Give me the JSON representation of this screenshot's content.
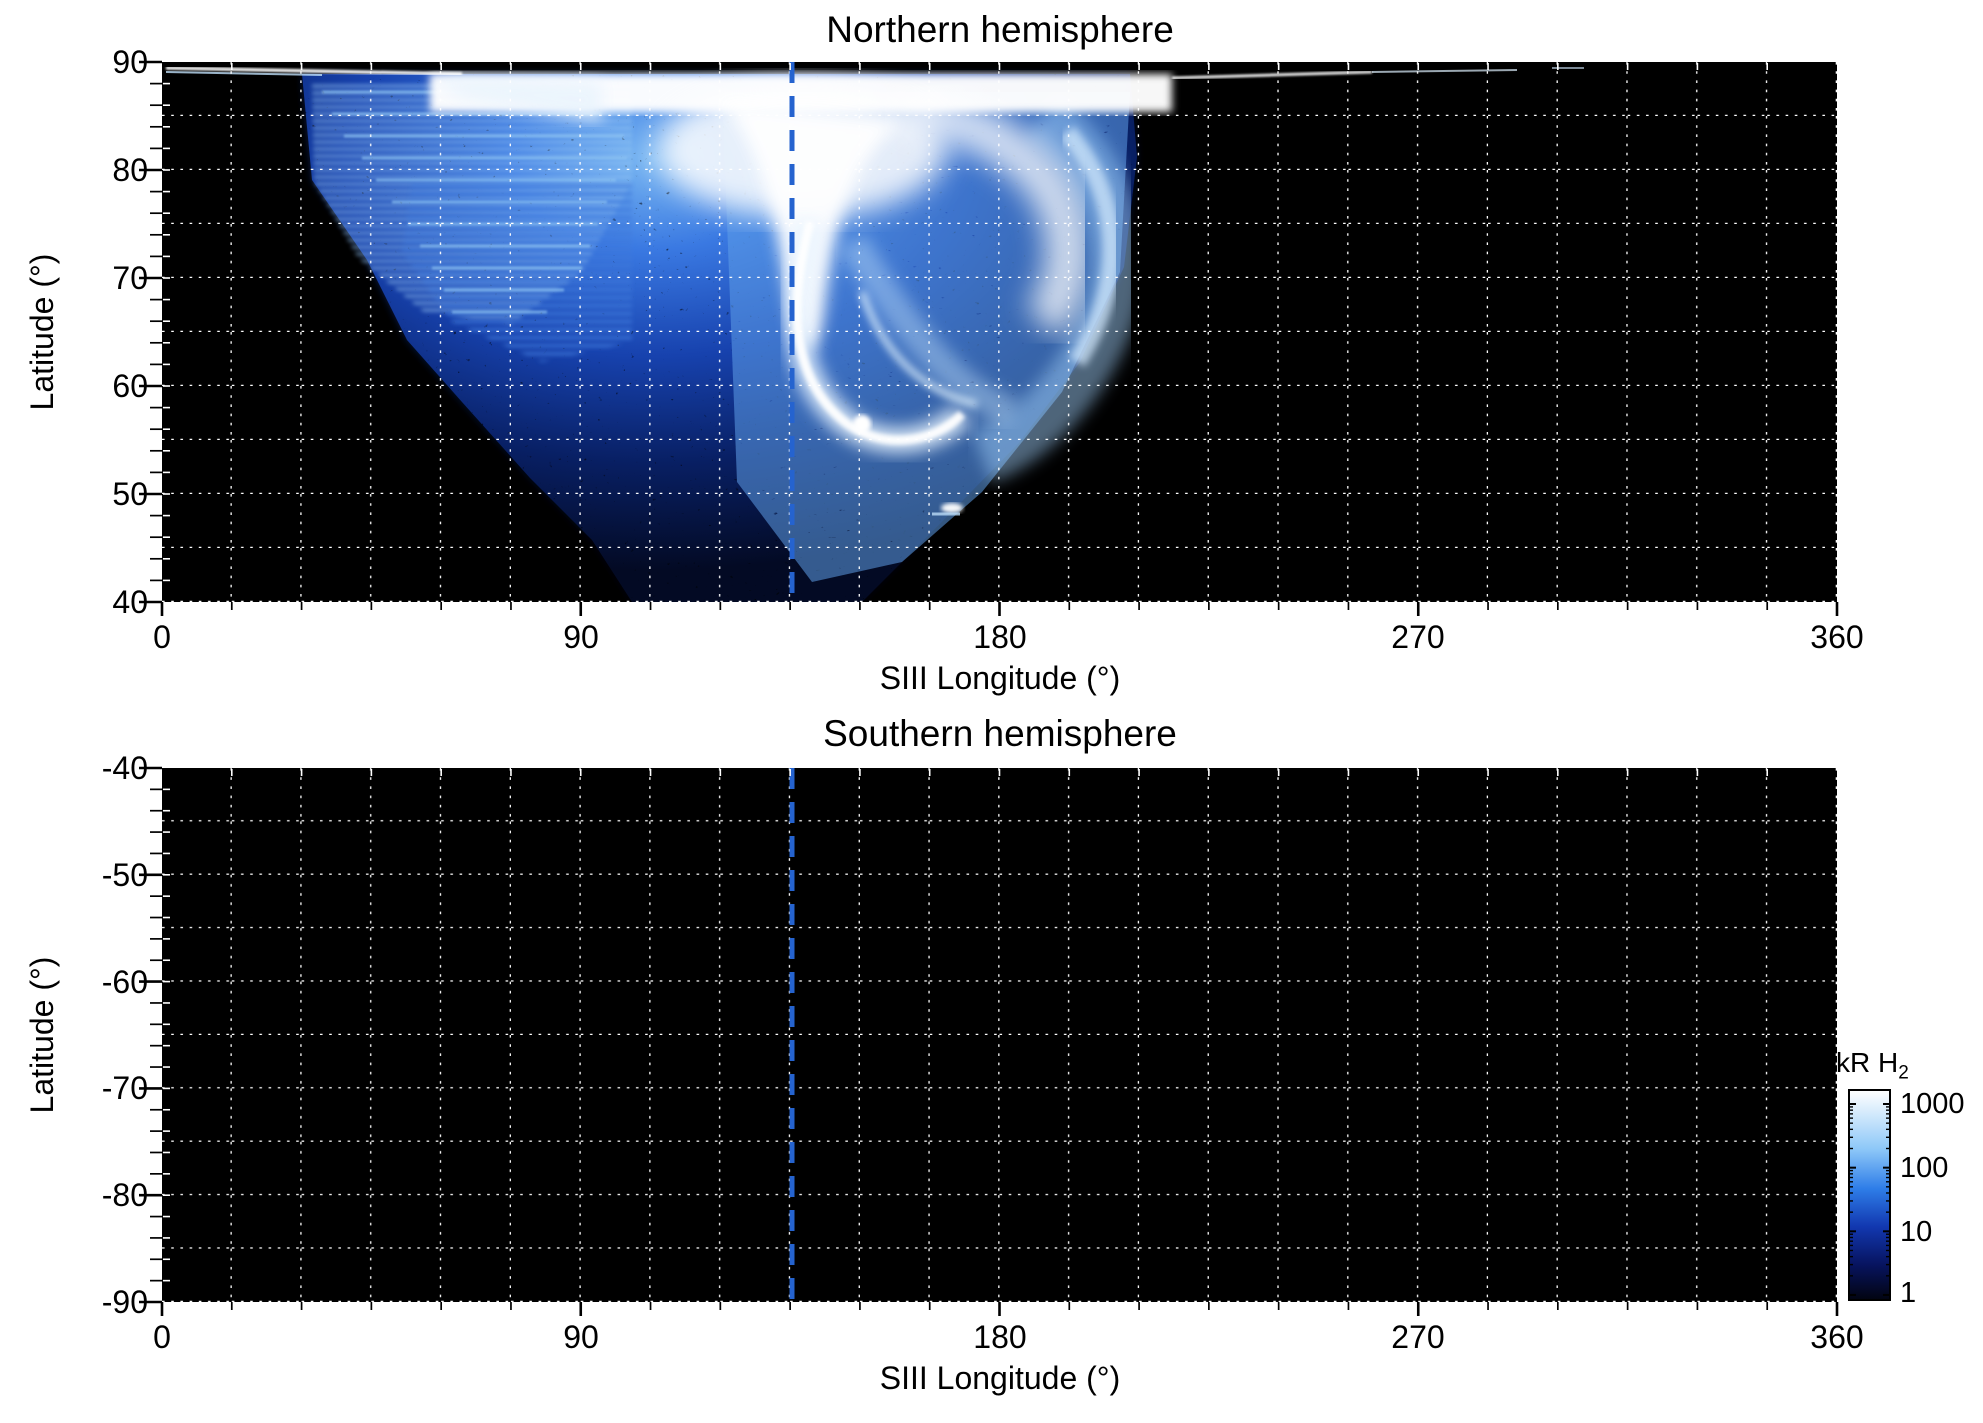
{
  "figure": {
    "north": {
      "title": "Northern hemisphere",
      "xlabel": "SIII Longitude (°)",
      "ylabel": "Latitude (°)",
      "x_ticks": [
        "0",
        "90",
        "180",
        "270",
        "360"
      ],
      "y_ticks": [
        "90",
        "80",
        "70",
        "60",
        "50",
        "40"
      ]
    },
    "south": {
      "title": "Southern hemisphere",
      "xlabel": "SIII Longitude (°)",
      "ylabel": "Latitude (°)",
      "x_ticks": [
        "0",
        "90",
        "180",
        "270",
        "360"
      ],
      "y_ticks": [
        "-40",
        "-50",
        "-60",
        "-70",
        "-80",
        "-90"
      ]
    },
    "colorbar": {
      "title_main": "kR H",
      "title_sub": "2",
      "ticks": [
        "1000",
        "100",
        "10",
        "1"
      ]
    }
  },
  "chart_data": [
    {
      "type": "heatmap",
      "title": "Northern hemisphere",
      "xlabel": "SIII Longitude (°)",
      "ylabel": "Latitude (°)",
      "xlim": [
        0,
        360
      ],
      "ylim": [
        40,
        90
      ],
      "x_major_ticks": [
        0,
        90,
        180,
        270,
        360
      ],
      "x_minor_tick_interval_deg": 15,
      "y_major_ticks": [
        90,
        80,
        70,
        60,
        50,
        40
      ],
      "y_minor_tick_interval_deg": 2,
      "grid": {
        "x_interval_deg": 15,
        "y_interval_deg": 5,
        "style": "white dotted"
      },
      "colorbar": {
        "label": "kR H2",
        "scale": "log",
        "range": [
          1,
          1000
        ],
        "colormap": "black-blue-white"
      },
      "reference_line": {
        "type": "vertical-dashed",
        "x_deg": 135,
        "color": "#2563cf"
      },
      "data_description": {
        "coverage_lon_deg": [
          30,
          212
        ],
        "coverage_lat_deg": [
          40,
          90
        ],
        "features": [
          "bright white emission band at lat 85-90 between lon 60-215",
          "thin bright streak along lat ~89.5 from lon 0-65 and lon 215-290 and near 350-360",
          "white plume descending along lon 128-150 down to lat ~62 around the 135 deg dashed line",
          "bright white auroral arc (crescent) near lon 138-175, lat 56-75 with brightest point near lon 150, lat 57",
          "small bright spot near lon 167, lat 49",
          "horizontally streaked light-blue fan at lon 32-100, lat 65-88",
          "curved light-blue streak lobe at lon 180-210, lat 60-88",
          "speckled faint blue emission filling lon 95-210 down to lat 40",
          "black (no data) elsewhere"
        ]
      }
    },
    {
      "type": "heatmap",
      "title": "Southern hemisphere",
      "xlabel": "SIII Longitude (°)",
      "ylabel": "Latitude (°)",
      "xlim": [
        0,
        360
      ],
      "ylim": [
        -90,
        -40
      ],
      "x_major_ticks": [
        0,
        90,
        180,
        270,
        360
      ],
      "x_minor_tick_interval_deg": 15,
      "y_major_ticks": [
        -40,
        -50,
        -60,
        -70,
        -80,
        -90
      ],
      "y_minor_tick_interval_deg": 2,
      "grid": {
        "x_interval_deg": 15,
        "y_interval_deg": 5,
        "style": "white dotted"
      },
      "reference_line": {
        "type": "vertical-dashed",
        "x_deg": 135,
        "color": "#2563cf"
      },
      "data_description": {
        "features": [
          "no emission above threshold; panel entirely black"
        ]
      }
    }
  ]
}
